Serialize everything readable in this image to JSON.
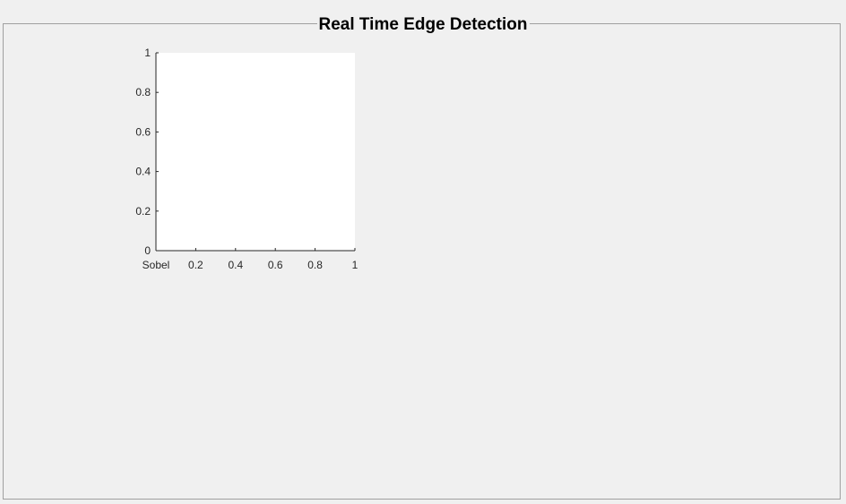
{
  "panel": {
    "title": "Real Time Edge Detection"
  },
  "chart_data": {
    "type": "scatter",
    "title": "",
    "xlabel": "",
    "ylabel": "",
    "xlim": [
      0,
      1
    ],
    "ylim": [
      0,
      1
    ],
    "x_ticks": [
      0.2,
      0.4,
      0.6,
      0.8,
      1
    ],
    "x_tick_labels": [
      "0.2",
      "0.4",
      "0.6",
      "0.8",
      "1"
    ],
    "x_origin_label": "Sobel",
    "y_ticks": [
      0,
      0.2,
      0.4,
      0.6,
      0.8,
      1
    ],
    "y_tick_labels": [
      "0",
      "0.2",
      "0.4",
      "0.6",
      "0.8",
      "1"
    ],
    "series": [],
    "grid": false,
    "colors": {
      "plot_background": "#ffffff",
      "axis": "#262626",
      "figure_background": "#f0f0f0"
    }
  }
}
